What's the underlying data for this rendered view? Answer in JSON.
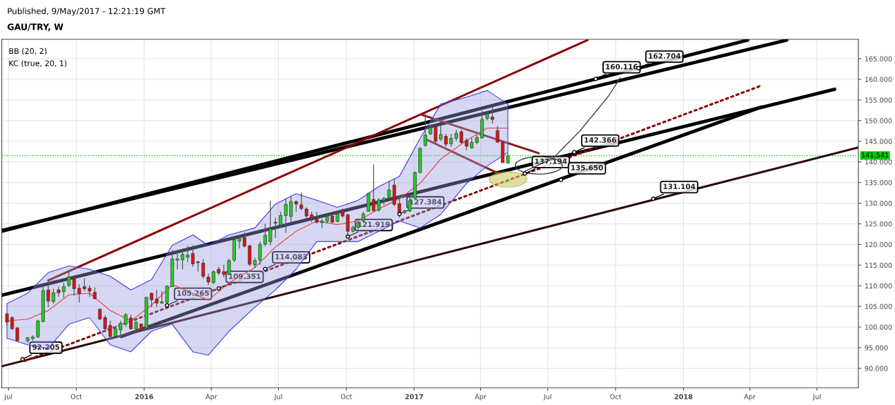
{
  "chart_data": {
    "type": "candlestick",
    "title": "GAU/TRY, W",
    "annotations": [
      "Published, 9/May/2017 - 12:21:19 GMT",
      "BB (20, 2)",
      "KC (true, 20, 1)",
      {
        "text": "92.205",
        "x": "2015-07-20",
        "y": 92.205
      },
      {
        "text": "105.265",
        "x": "2016-02-01",
        "y": 105.265
      },
      {
        "text": "109.351",
        "x": "2016-04-11",
        "y": 109.351
      },
      {
        "text": "114.083",
        "x": "2016-06-13",
        "y": 114.083
      },
      {
        "text": "121.919",
        "x": "2016-10-03",
        "y": 121.919
      },
      {
        "text": "127.384",
        "x": "2016-12-12",
        "y": 127.384
      },
      {
        "text": "137.194",
        "x": "2017-05-31",
        "y": 137.194
      },
      {
        "text": "142.366",
        "x": "2017-08-06",
        "y": 142.366
      },
      {
        "text": "135.650",
        "x": "2017-07-19",
        "y": 135.65
      },
      {
        "text": "160.116",
        "x": "2017-09-04",
        "y": 160.116
      },
      {
        "text": "162.704",
        "x": "2017-11-01",
        "y": 162.704
      },
      {
        "text": "131.104",
        "x": "2017-11-21",
        "y": 131.104
      }
    ],
    "x": [
      "2015-06-29",
      "2015-07-06",
      "2015-07-13",
      "2015-07-27",
      "2015-08-03",
      "2015-08-10",
      "2015-08-17",
      "2015-08-24",
      "2015-08-31",
      "2015-09-07",
      "2015-09-14",
      "2015-09-21",
      "2015-09-28",
      "2015-10-05",
      "2015-10-12",
      "2015-10-19",
      "2015-10-26",
      "2015-11-02",
      "2015-11-09",
      "2015-11-16",
      "2015-11-23",
      "2015-11-30",
      "2015-12-07",
      "2015-12-14",
      "2015-12-21",
      "2015-12-28",
      "2016-01-04",
      "2016-01-11",
      "2016-01-18",
      "2016-01-25",
      "2016-02-01",
      "2016-02-08",
      "2016-02-15",
      "2016-02-22",
      "2016-02-29",
      "2016-03-07",
      "2016-03-14",
      "2016-03-21",
      "2016-03-28",
      "2016-04-04",
      "2016-04-11",
      "2016-04-18",
      "2016-04-25",
      "2016-05-02",
      "2016-05-09",
      "2016-05-16",
      "2016-05-23",
      "2016-05-30",
      "2016-06-06",
      "2016-06-13",
      "2016-06-20",
      "2016-06-27",
      "2016-07-04",
      "2016-07-11",
      "2016-07-18",
      "2016-07-25",
      "2016-08-01",
      "2016-08-08",
      "2016-08-15",
      "2016-08-22",
      "2016-08-29",
      "2016-09-05",
      "2016-09-12",
      "2016-09-19",
      "2016-09-26",
      "2016-10-03",
      "2016-10-10",
      "2016-10-17",
      "2016-10-24",
      "2016-10-31",
      "2016-11-07",
      "2016-11-14",
      "2016-11-21",
      "2016-11-28",
      "2016-12-05",
      "2016-12-12",
      "2016-12-19",
      "2016-12-26",
      "2017-01-02",
      "2017-01-09",
      "2017-01-16",
      "2017-01-23",
      "2017-01-30",
      "2017-02-06",
      "2017-02-13",
      "2017-02-20",
      "2017-02-27",
      "2017-03-06",
      "2017-03-13",
      "2017-03-20",
      "2017-03-27",
      "2017-04-03",
      "2017-04-10",
      "2017-04-17",
      "2017-04-24",
      "2017-05-01",
      "2017-05-08"
    ],
    "ohlc": [
      [
        103.2,
        103.4,
        100.4,
        101.2
      ],
      [
        102.3,
        102.6,
        99.3,
        99.6
      ],
      [
        99.8,
        100.0,
        96.4,
        96.7
      ],
      [
        96.7,
        97.6,
        96.2,
        97.4
      ],
      [
        97.2,
        98.0,
        96.7,
        97.6
      ],
      [
        97.6,
        101.8,
        97.4,
        101.5
      ],
      [
        101.3,
        109.8,
        101.2,
        108.8
      ],
      [
        109.0,
        111.2,
        104.8,
        106.3
      ],
      [
        106.2,
        109.3,
        105.7,
        108.3
      ],
      [
        109.0,
        109.8,
        107.3,
        108.3
      ],
      [
        108.6,
        110.7,
        107.1,
        109.8
      ],
      [
        110.1,
        113.7,
        109.8,
        112.2
      ],
      [
        111.6,
        112.6,
        107.6,
        109.3
      ],
      [
        109.4,
        110.4,
        105.9,
        108.1
      ],
      [
        109.8,
        111.8,
        108.7,
        109.3
      ],
      [
        109.4,
        110.1,
        107.3,
        108.7
      ],
      [
        108.4,
        109.6,
        106.7,
        106.9
      ],
      [
        104.3,
        104.6,
        101.8,
        101.9
      ],
      [
        102.3,
        102.9,
        99.3,
        99.6
      ],
      [
        100.4,
        101.5,
        97.4,
        97.7
      ],
      [
        97.7,
        99.8,
        97.3,
        99.6
      ],
      [
        99.3,
        101.5,
        97.6,
        100.9
      ],
      [
        100.7,
        103.4,
        100.1,
        103.0
      ],
      [
        102.2,
        103.0,
        99.3,
        99.6
      ],
      [
        99.6,
        101.5,
        99.3,
        101.1
      ],
      [
        100.7,
        100.9,
        99.1,
        99.3
      ],
      [
        99.8,
        107.3,
        99.6,
        107.2
      ],
      [
        108.2,
        108.4,
        104.8,
        106.6
      ],
      [
        106.8,
        109.0,
        104.8,
        105.8
      ],
      [
        105.8,
        108.7,
        105.7,
        106.1
      ],
      [
        106.0,
        110.1,
        105.7,
        109.9
      ],
      [
        109.8,
        118.7,
        109.7,
        116.5
      ],
      [
        116.2,
        118.4,
        114.0,
        116.5
      ],
      [
        116.3,
        119.0,
        114.0,
        117.6
      ],
      [
        116.9,
        119.7,
        115.7,
        117.4
      ],
      [
        117.8,
        119.8,
        114.6,
        115.3
      ],
      [
        115.8,
        116.0,
        113.4,
        115.6
      ],
      [
        115.5,
        116.5,
        111.7,
        112.3
      ],
      [
        112.1,
        112.9,
        110.1,
        110.9
      ],
      [
        110.8,
        113.7,
        110.4,
        113.4
      ],
      [
        114.0,
        114.6,
        112.6,
        113.1
      ],
      [
        113.4,
        115.1,
        112.0,
        112.7
      ],
      [
        112.8,
        116.5,
        112.5,
        116.1
      ],
      [
        116.2,
        121.9,
        115.7,
        121.2
      ],
      [
        120.8,
        122.3,
        119.0,
        121.5
      ],
      [
        121.7,
        122.9,
        119.3,
        119.6
      ],
      [
        119.7,
        119.8,
        114.8,
        115.2
      ],
      [
        115.1,
        116.8,
        114.3,
        116.1
      ],
      [
        116.2,
        120.7,
        115.1,
        120.0
      ],
      [
        120.1,
        125.0,
        119.6,
        122.2
      ],
      [
        120.7,
        130.6,
        119.8,
        123.8
      ],
      [
        125.4,
        126.5,
        121.5,
        125.2
      ],
      [
        124.7,
        127.9,
        124.0,
        127.0
      ],
      [
        127.0,
        131.2,
        122.8,
        129.7
      ],
      [
        126.8,
        131.8,
        125.1,
        130.4
      ],
      [
        130.4,
        130.7,
        127.9,
        129.8
      ],
      [
        129.6,
        132.6,
        128.2,
        128.7
      ],
      [
        128.6,
        129.0,
        126.5,
        126.9
      ],
      [
        127.2,
        127.9,
        125.4,
        126.3
      ],
      [
        126.1,
        127.9,
        125.1,
        125.4
      ],
      [
        125.3,
        126.2,
        124.0,
        125.7
      ],
      [
        125.6,
        127.3,
        125.1,
        126.8
      ],
      [
        126.9,
        127.4,
        125.1,
        125.4
      ],
      [
        125.6,
        127.9,
        125.4,
        127.4
      ],
      [
        128.3,
        128.7,
        126.5,
        126.9
      ],
      [
        127.2,
        127.4,
        122.3,
        123.2
      ],
      [
        123.2,
        124.6,
        122.9,
        124.1
      ],
      [
        124.1,
        125.7,
        123.7,
        125.3
      ],
      [
        125.7,
        127.9,
        125.4,
        127.4
      ],
      [
        128.0,
        132.6,
        127.9,
        132.4
      ],
      [
        130.9,
        139.4,
        127.9,
        128.2
      ],
      [
        128.3,
        131.2,
        128.0,
        130.8
      ],
      [
        130.7,
        131.5,
        129.6,
        131.2
      ],
      [
        131.3,
        135.3,
        131.1,
        133.2
      ],
      [
        134.4,
        135.8,
        129.3,
        129.7
      ],
      [
        129.9,
        131.8,
        126.5,
        127.7
      ],
      [
        127.7,
        128.4,
        127.4,
        128.1
      ],
      [
        128.1,
        131.8,
        127.9,
        130.6
      ],
      [
        131.2,
        137.7,
        130.9,
        137.4
      ],
      [
        137.4,
        143.4,
        137.3,
        143.3
      ],
      [
        144.0,
        151.8,
        143.7,
        146.5
      ],
      [
        146.8,
        149.0,
        146.5,
        148.3
      ],
      [
        148.7,
        149.3,
        144.6,
        145.0
      ],
      [
        145.5,
        149.0,
        145.1,
        146.6
      ],
      [
        146.2,
        146.8,
        143.7,
        144.3
      ],
      [
        144.4,
        146.8,
        143.7,
        145.7
      ],
      [
        145.7,
        147.8,
        145.1,
        146.9
      ],
      [
        147.3,
        147.8,
        144.3,
        144.7
      ],
      [
        145.2,
        145.7,
        142.9,
        143.8
      ],
      [
        143.4,
        145.8,
        143.2,
        144.7
      ],
      [
        144.7,
        146.5,
        144.3,
        145.9
      ],
      [
        145.8,
        152.4,
        145.7,
        150.3
      ],
      [
        150.5,
        152.3,
        150.1,
        151.6
      ],
      [
        150.9,
        153.4,
        149.3,
        150.3
      ],
      [
        147.6,
        148.7,
        144.6,
        144.8
      ],
      [
        144.8,
        145.1,
        139.8,
        139.8
      ],
      [
        139.7,
        142.1,
        139.7,
        141.5
      ]
    ],
    "series": [
      {
        "type": "line",
        "color": "#e05050",
        "x": [
          "2015-06-29",
          "2015-07-27",
          "2015-08-24",
          "2015-09-21",
          "2015-10-19",
          "2015-11-16",
          "2015-12-14",
          "2016-01-11",
          "2016-02-08",
          "2016-03-07",
          "2016-03-28",
          "2016-04-25",
          "2016-05-30",
          "2016-06-27",
          "2016-07-25",
          "2016-08-22",
          "2016-09-19",
          "2016-10-17",
          "2016-11-14",
          "2016-12-12",
          "2017-01-09",
          "2017-02-06",
          "2017-03-13",
          "2017-04-10",
          "2017-05-08"
        ],
        "values": [
          101.5,
          101.9,
          104.0,
          107.8,
          108.2,
          104.0,
          101.5,
          105.3,
          110.3,
          108.2,
          106.5,
          110.7,
          114.4,
          119.4,
          123.2,
          125.7,
          124.8,
          125.7,
          128.6,
          131.1,
          134.8,
          140.7,
          145.2,
          148.2,
          148.2
        ],
        "lower": [
          97.3,
          95.7,
          94.8,
          100.7,
          102.3,
          95.7,
          94.0,
          99.0,
          100.7,
          94.0,
          93.2,
          99.0,
          104.8,
          109.0,
          114.0,
          120.7,
          120.7,
          120.7,
          123.2,
          125.7,
          124.0,
          127.3,
          134.8,
          139.0,
          142.3
        ],
        "upper": [
          105.7,
          108.2,
          113.2,
          114.8,
          114.0,
          112.3,
          109.0,
          111.5,
          119.8,
          122.3,
          119.8,
          122.3,
          124.0,
          129.8,
          132.3,
          130.7,
          129.0,
          130.7,
          134.0,
          136.5,
          145.7,
          154.0,
          155.7,
          157.3,
          154.0
        ]
      },
      {
        "type": "line",
        "color": "#000000",
        "x": [
          "2015-06-22",
          "2018-03-29"
        ],
        "values": [
          123.2,
          169.5
        ]
      },
      {
        "type": "line",
        "color": "#000000",
        "x": [
          "2015-06-22",
          "2018-05-21"
        ],
        "values": [
          123.4,
          169.5
        ]
      },
      {
        "type": "line",
        "color": "#000000",
        "x": [
          "2015-06-22",
          "2018-07-25"
        ],
        "values": [
          107.7,
          157.6
        ]
      },
      {
        "type": "line",
        "color": "#000000",
        "x": [
          "2015-12-01",
          "2018-04-17"
        ],
        "values": [
          97.7,
          153.3
        ]
      },
      {
        "type": "line",
        "color": "#2a0505",
        "x": [
          "2015-06-22",
          "2018-08-26"
        ],
        "values": [
          90.5,
          143.5
        ]
      },
      {
        "type": "line",
        "color": "#8b0000",
        "x": [
          "2015-08-24",
          "2017-08-24"
        ],
        "values": [
          111.3,
          169.5
        ]
      },
      {
        "type": "line",
        "color": "#8b1a1a",
        "x": [
          "2017-01-10",
          "2017-06-19"
        ],
        "values": [
          151.5,
          142.1
        ]
      },
      {
        "type": "line",
        "color": "#8b1a1a",
        "x": [
          "2017-01-19",
          "2017-04-24"
        ],
        "values": [
          145.3,
          137.3
        ]
      },
      {
        "type": "line",
        "color": "#8b0000",
        "line_style": "dotted",
        "x": [
          "2015-07-23",
          "2018-04-17"
        ],
        "values": [
          91.8,
          158.5
        ]
      }
    ],
    "ref_lines": [
      {
        "axis": "y",
        "value": 141.541,
        "label": "141.541",
        "color": "#00cc00",
        "line_style": "dotted"
      }
    ],
    "xlim": [
      "2015-06-22",
      "2018-08-26"
    ],
    "xticks": [
      {
        "value": "2015-07-01",
        "label": "Jul"
      },
      {
        "value": "2015-10-01",
        "label": "Oct"
      },
      {
        "value": "2016-01-01",
        "label": "2016"
      },
      {
        "value": "2016-04-01",
        "label": "Apr"
      },
      {
        "value": "2016-07-01",
        "label": "Jul"
      },
      {
        "value": "2016-10-01",
        "label": "Oct"
      },
      {
        "value": "2017-01-01",
        "label": "2017"
      },
      {
        "value": "2017-04-01",
        "label": "Apr"
      },
      {
        "value": "2017-07-01",
        "label": "Jul"
      },
      {
        "value": "2017-10-01",
        "label": "Oct"
      },
      {
        "value": "2018-01-01",
        "label": "2018"
      },
      {
        "value": "2018-04-01",
        "label": "Apr"
      },
      {
        "value": "2018-07-01",
        "label": "Jul"
      }
    ],
    "ylim": [
      85.3,
      169.7
    ],
    "yticks": [
      {
        "value": 90,
        "label": "90.000"
      },
      {
        "value": 95,
        "label": "95.000"
      },
      {
        "value": 100,
        "label": "100.000"
      },
      {
        "value": 105,
        "label": "105.000"
      },
      {
        "value": 110,
        "label": "110.000"
      },
      {
        "value": 115,
        "label": "115.000"
      },
      {
        "value": 120,
        "label": "120.000"
      },
      {
        "value": 125,
        "label": "125.000"
      },
      {
        "value": 130,
        "label": "130.000"
      },
      {
        "value": 135,
        "label": "135.000"
      },
      {
        "value": 140,
        "label": "140.000"
      },
      {
        "value": 145,
        "label": "145.000"
      },
      {
        "value": 150,
        "label": "150.000"
      },
      {
        "value": 155,
        "label": "155.000"
      },
      {
        "value": 160,
        "label": "160.000"
      },
      {
        "value": 165,
        "label": "165.000"
      }
    ],
    "grid": true
  }
}
